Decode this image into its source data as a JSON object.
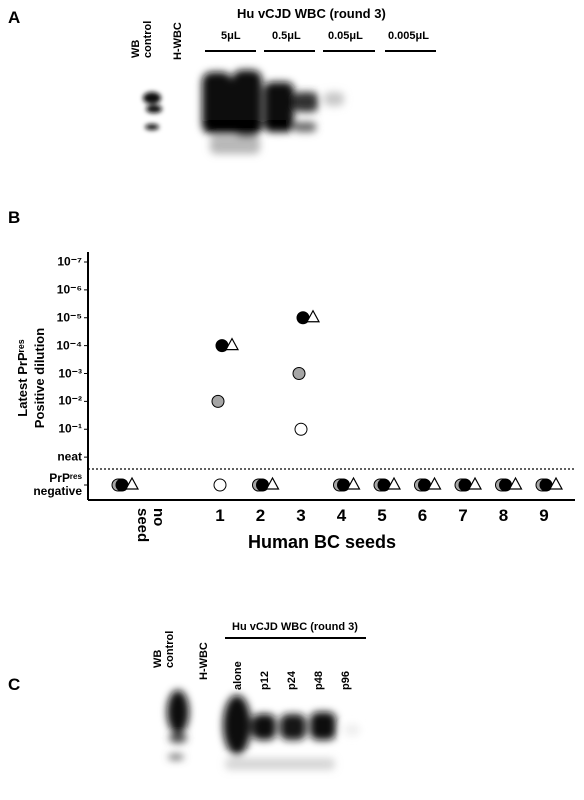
{
  "panels": {
    "a": {
      "label": "A",
      "lanes": [
        "WB control",
        "H-WBC"
      ],
      "group_title": "Hu vCJD WBC (round 3)",
      "dilutions": [
        "5μL",
        "0.5μL",
        "0.05μL",
        "0.005μL"
      ]
    },
    "b": {
      "label": "B"
    },
    "c": {
      "label": "C",
      "lanes": [
        "WB control",
        "H-WBC"
      ],
      "group_title": "Hu vCJD WBC (round 3)",
      "treatments": [
        "alone",
        "p12",
        "p24",
        "p48",
        "p96"
      ]
    }
  },
  "chart_data": {
    "type": "scatter",
    "ylabel_lines": [
      "Latest PrPʳᵉˢ",
      "Positive dilution"
    ],
    "xlabel": "Human BC seeds",
    "categories": [
      "no seed",
      "1",
      "2",
      "3",
      "4",
      "5",
      "6",
      "7",
      "8",
      "9"
    ],
    "ylim": [
      0,
      8
    ],
    "yticks": [
      {
        "value": 0,
        "label": "PrPʳᵉˢ negative"
      },
      {
        "value": 1,
        "label": "neat"
      },
      {
        "value": 2,
        "label": "10⁻¹"
      },
      {
        "value": 3,
        "label": "10⁻²"
      },
      {
        "value": 4,
        "label": "10⁻³"
      },
      {
        "value": 5,
        "label": "10⁻⁴"
      },
      {
        "value": 6,
        "label": "10⁻⁵"
      },
      {
        "value": 7,
        "label": "10⁻⁶"
      },
      {
        "value": 8,
        "label": "10⁻⁷"
      }
    ],
    "series": [
      {
        "color": "#ffffff",
        "marker": "circle",
        "values": [
          0,
          0,
          0,
          2,
          0,
          0,
          0,
          0,
          0,
          0
        ]
      },
      {
        "color": "#a6a6a6",
        "marker": "circle",
        "values": [
          0,
          3,
          0,
          4,
          0,
          0,
          0,
          0,
          0,
          0
        ]
      },
      {
        "color": "#000000",
        "marker": "circle",
        "values": [
          0,
          5,
          0,
          6,
          0,
          0,
          0,
          0,
          0,
          0
        ]
      },
      {
        "color": "#ffffff",
        "marker": "triangle",
        "values": [
          0,
          5,
          0,
          6,
          0,
          0,
          0,
          0,
          0,
          0
        ]
      }
    ]
  }
}
